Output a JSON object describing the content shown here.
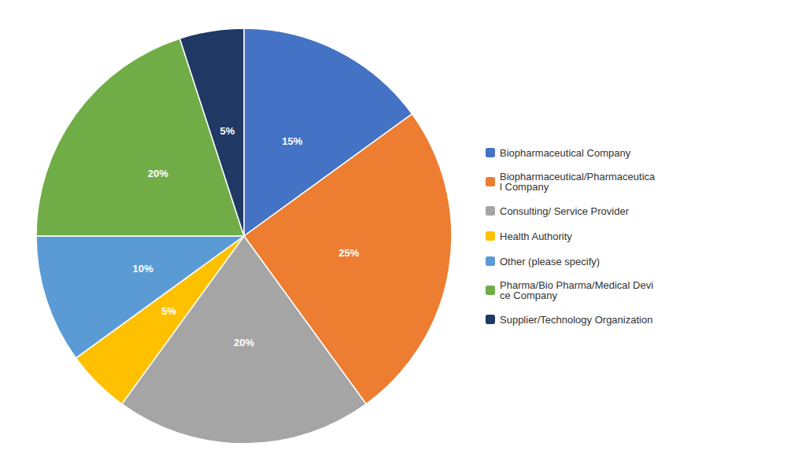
{
  "chart_data": {
    "type": "pie",
    "categories": [
      "Biopharmaceutical Company",
      "Biopharmaceutical/Pharmaceutica\nl Company",
      "Consulting/ Service Provider",
      "Health Authority",
      "Other (please specify)",
      "Pharma/Bio Pharma/Medical Devi\nce Company",
      "Supplier/Technology Organization"
    ],
    "values": [
      15,
      25,
      20,
      5,
      10,
      20,
      5
    ],
    "value_labels": [
      "15%",
      "25%",
      "20%",
      "5%",
      "10%",
      "20%",
      "5%"
    ],
    "colors": [
      "#4472C4",
      "#ED7D31",
      "#A5A5A5",
      "#FFC000",
      "#5B9BD5",
      "#70AD47",
      "#1F3864"
    ],
    "data_labels": true,
    "legend": "right"
  }
}
